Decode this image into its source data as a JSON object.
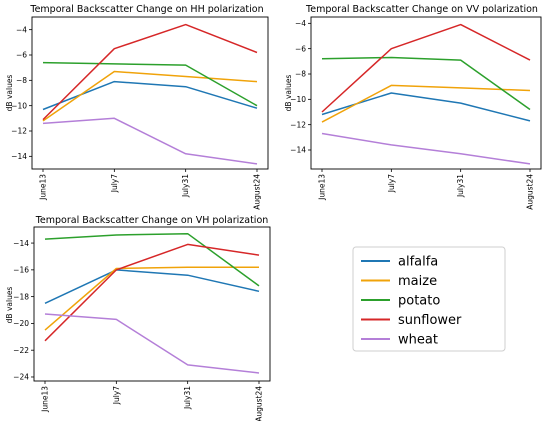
{
  "colors": {
    "alfalfa": "#1f77b4",
    "maize": "#f0a30a",
    "potato": "#2ca02c",
    "sunflower": "#d62728",
    "wheat": "#b47fd8"
  },
  "legend": {
    "placement": "lower-right",
    "entries": [
      {
        "name": "alfalfa",
        "color": "#1f77b4"
      },
      {
        "name": "maize",
        "color": "#f0a30a"
      },
      {
        "name": "potato",
        "color": "#2ca02c"
      },
      {
        "name": "sunflower",
        "color": "#d62728"
      },
      {
        "name": "wheat",
        "color": "#b47fd8"
      }
    ]
  },
  "chart_data": [
    {
      "type": "line",
      "title": "Temporal Backscatter Change on HH polarization",
      "xlabel": "",
      "ylabel": "dB values",
      "categories": [
        "June13",
        "July7",
        "July31",
        "August24"
      ],
      "yticks": [
        -4,
        -6,
        -8,
        -10,
        -12,
        -14
      ],
      "ylim": [
        -15,
        -3
      ],
      "grid": false,
      "series": [
        {
          "name": "alfalfa",
          "values": [
            -10.3,
            -8.1,
            -8.5,
            -10.2
          ]
        },
        {
          "name": "maize",
          "values": [
            -11.2,
            -7.3,
            -7.7,
            -8.1
          ]
        },
        {
          "name": "potato",
          "values": [
            -6.6,
            -6.7,
            -6.8,
            -10.0
          ]
        },
        {
          "name": "sunflower",
          "values": [
            -11.1,
            -5.5,
            -3.6,
            -5.8
          ]
        },
        {
          "name": "wheat",
          "values": [
            -11.4,
            -11.0,
            -13.8,
            -14.6
          ]
        }
      ]
    },
    {
      "type": "line",
      "title": "Temporal Backscatter Change on VV polarization",
      "xlabel": "",
      "ylabel": "dB values",
      "categories": [
        "June13",
        "July7",
        "July31",
        "August24"
      ],
      "yticks": [
        -4,
        -6,
        -8,
        -10,
        -12,
        -14
      ],
      "ylim": [
        -15.5,
        -3.5
      ],
      "grid": false,
      "series": [
        {
          "name": "alfalfa",
          "values": [
            -11.2,
            -9.5,
            -10.3,
            -11.7
          ]
        },
        {
          "name": "maize",
          "values": [
            -11.8,
            -8.9,
            -9.1,
            -9.3
          ]
        },
        {
          "name": "potato",
          "values": [
            -6.8,
            -6.7,
            -6.9,
            -10.8
          ]
        },
        {
          "name": "sunflower",
          "values": [
            -11.0,
            -6.0,
            -4.1,
            -6.9
          ]
        },
        {
          "name": "wheat",
          "values": [
            -12.7,
            -13.6,
            -14.3,
            -15.1
          ]
        }
      ]
    },
    {
      "type": "line",
      "title": "Temporal Backscatter Change on VH polarization",
      "xlabel": "",
      "ylabel": "dB values",
      "categories": [
        "June13",
        "July7",
        "July31",
        "August24"
      ],
      "yticks": [
        -14,
        -16,
        -18,
        -20,
        -22,
        -24
      ],
      "ylim": [
        -24.3,
        -12.8
      ],
      "grid": false,
      "series": [
        {
          "name": "alfalfa",
          "values": [
            -18.5,
            -16.0,
            -16.4,
            -17.6
          ]
        },
        {
          "name": "maize",
          "values": [
            -20.5,
            -15.9,
            -15.8,
            -15.8
          ]
        },
        {
          "name": "potato",
          "values": [
            -13.7,
            -13.4,
            -13.3,
            -17.2
          ]
        },
        {
          "name": "sunflower",
          "values": [
            -21.3,
            -16.0,
            -14.1,
            -14.9
          ]
        },
        {
          "name": "wheat",
          "values": [
            -19.3,
            -19.7,
            -23.1,
            -23.7
          ]
        }
      ]
    }
  ]
}
